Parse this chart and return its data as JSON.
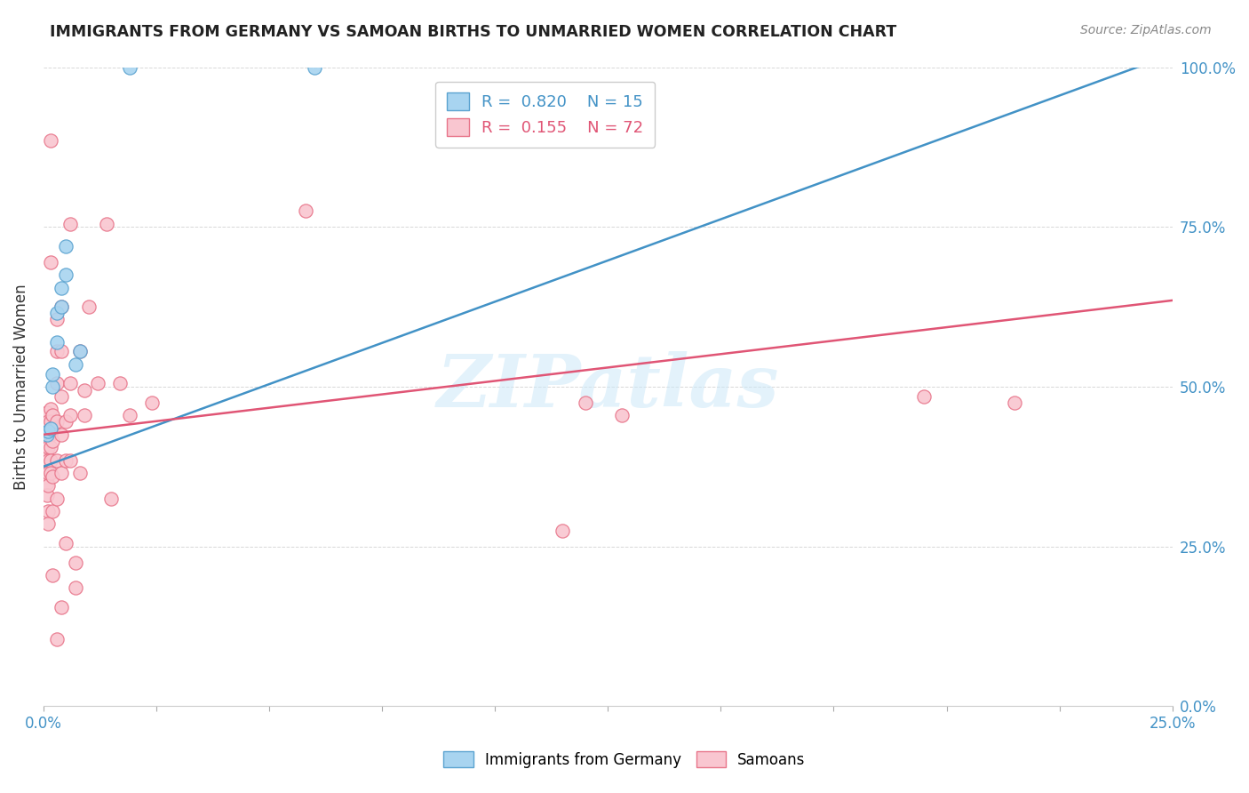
{
  "title": "IMMIGRANTS FROM GERMANY VS SAMOAN BIRTHS TO UNMARRIED WOMEN CORRELATION CHART",
  "source": "Source: ZipAtlas.com",
  "ylabel": "Births to Unmarried Women",
  "legend_blue_r": "0.820",
  "legend_blue_n": "15",
  "legend_pink_r": "0.155",
  "legend_pink_n": "72",
  "legend_blue_label": "Immigrants from Germany",
  "legend_pink_label": "Samoans",
  "watermark": "ZIPatlas",
  "blue_fill": "#a8d4f0",
  "pink_fill": "#f9c6d0",
  "blue_edge": "#5ba3d0",
  "pink_edge": "#e8758a",
  "line_blue_color": "#4292c6",
  "line_pink_color": "#e05575",
  "grid_color": "#d8d8d8",
  "title_color": "#222222",
  "source_color": "#888888",
  "axis_label_color": "#333333",
  "right_axis_color": "#4292c6",
  "xmin": 0.0,
  "xmax": 0.25,
  "ymin": 0.0,
  "ymax": 1.0,
  "x_ticks": [
    0.0,
    0.025,
    0.05,
    0.075,
    0.1,
    0.125,
    0.15,
    0.175,
    0.2,
    0.225,
    0.25
  ],
  "y_ticks": [
    0.0,
    0.25,
    0.5,
    0.75,
    1.0
  ],
  "blue_line_x": [
    0.0,
    0.25
  ],
  "blue_line_y": [
    0.375,
    1.02
  ],
  "pink_line_x": [
    0.0,
    0.25
  ],
  "pink_line_y": [
    0.425,
    0.635
  ],
  "blue_scatter": [
    [
      0.0008,
      0.425
    ],
    [
      0.001,
      0.43
    ],
    [
      0.0015,
      0.435
    ],
    [
      0.002,
      0.5
    ],
    [
      0.002,
      0.52
    ],
    [
      0.003,
      0.57
    ],
    [
      0.003,
      0.615
    ],
    [
      0.004,
      0.625
    ],
    [
      0.004,
      0.655
    ],
    [
      0.005,
      0.675
    ],
    [
      0.005,
      0.72
    ],
    [
      0.007,
      0.535
    ],
    [
      0.008,
      0.555
    ],
    [
      0.019,
      1.0
    ],
    [
      0.06,
      1.0
    ]
  ],
  "pink_scatter": [
    [
      0.0003,
      0.395
    ],
    [
      0.0003,
      0.37
    ],
    [
      0.0004,
      0.36
    ],
    [
      0.0005,
      0.42
    ],
    [
      0.0005,
      0.41
    ],
    [
      0.0006,
      0.395
    ],
    [
      0.0006,
      0.375
    ],
    [
      0.0007,
      0.35
    ],
    [
      0.0007,
      0.33
    ],
    [
      0.0008,
      0.44
    ],
    [
      0.0008,
      0.46
    ],
    [
      0.0009,
      0.305
    ],
    [
      0.0009,
      0.285
    ],
    [
      0.001,
      0.445
    ],
    [
      0.001,
      0.425
    ],
    [
      0.001,
      0.405
    ],
    [
      0.001,
      0.385
    ],
    [
      0.001,
      0.365
    ],
    [
      0.001,
      0.345
    ],
    [
      0.0015,
      0.885
    ],
    [
      0.0015,
      0.695
    ],
    [
      0.0015,
      0.465
    ],
    [
      0.0015,
      0.445
    ],
    [
      0.0015,
      0.425
    ],
    [
      0.0015,
      0.405
    ],
    [
      0.0015,
      0.385
    ],
    [
      0.0015,
      0.365
    ],
    [
      0.002,
      0.455
    ],
    [
      0.002,
      0.435
    ],
    [
      0.002,
      0.415
    ],
    [
      0.002,
      0.36
    ],
    [
      0.002,
      0.305
    ],
    [
      0.002,
      0.205
    ],
    [
      0.003,
      0.605
    ],
    [
      0.003,
      0.555
    ],
    [
      0.003,
      0.505
    ],
    [
      0.003,
      0.445
    ],
    [
      0.003,
      0.385
    ],
    [
      0.003,
      0.325
    ],
    [
      0.003,
      0.105
    ],
    [
      0.004,
      0.625
    ],
    [
      0.004,
      0.555
    ],
    [
      0.004,
      0.485
    ],
    [
      0.004,
      0.425
    ],
    [
      0.004,
      0.365
    ],
    [
      0.004,
      0.155
    ],
    [
      0.005,
      0.445
    ],
    [
      0.005,
      0.385
    ],
    [
      0.005,
      0.255
    ],
    [
      0.006,
      0.755
    ],
    [
      0.006,
      0.505
    ],
    [
      0.006,
      0.455
    ],
    [
      0.006,
      0.385
    ],
    [
      0.007,
      0.225
    ],
    [
      0.007,
      0.185
    ],
    [
      0.008,
      0.555
    ],
    [
      0.008,
      0.365
    ],
    [
      0.009,
      0.495
    ],
    [
      0.009,
      0.455
    ],
    [
      0.01,
      0.625
    ],
    [
      0.012,
      0.505
    ],
    [
      0.014,
      0.755
    ],
    [
      0.015,
      0.325
    ],
    [
      0.017,
      0.505
    ],
    [
      0.019,
      0.455
    ],
    [
      0.024,
      0.475
    ],
    [
      0.058,
      0.775
    ],
    [
      0.115,
      0.275
    ],
    [
      0.12,
      0.475
    ],
    [
      0.128,
      0.455
    ],
    [
      0.195,
      0.485
    ],
    [
      0.215,
      0.475
    ]
  ]
}
